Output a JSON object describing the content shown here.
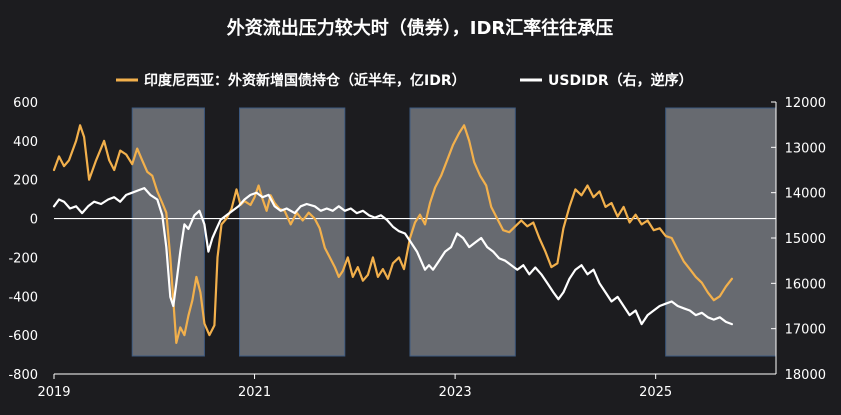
{
  "chart_data": {
    "type": "line",
    "title": "外资流出压力较大时（债券），IDR汇率往往承压",
    "legend": {
      "placement": "top",
      "entries": [
        {
          "name": "印度尼西亚：外资新增国债持仓（近半年，亿IDR）",
          "color": "#f2b04c"
        },
        {
          "name": "USDIDR（右，逆序）",
          "color": "#ffffff"
        }
      ]
    },
    "x_ticks": [
      "2019",
      "2021",
      "2023",
      "2025"
    ],
    "x_range": [
      2019.0,
      2026.2
    ],
    "y_left": {
      "min": -800,
      "max": 600,
      "ticks": [
        "600",
        "400",
        "200",
        "0",
        "-200",
        "-400",
        "-600",
        "-800"
      ]
    },
    "y_right": {
      "min": 12000,
      "max": 18000,
      "inverted": true,
      "ticks": [
        "12000",
        "13000",
        "14000",
        "15000",
        "16000",
        "17000",
        "18000"
      ]
    },
    "shaded_periods": [
      {
        "start": 2019.78,
        "end": 2020.5
      },
      {
        "start": 2020.85,
        "end": 2021.9
      },
      {
        "start": 2022.55,
        "end": 2023.6
      },
      {
        "start": 2025.1,
        "end": 2026.2
      }
    ],
    "series": [
      {
        "name": "印度尼西亚：外资新增国债持仓（近半年，亿IDR）",
        "axis": "left",
        "color": "#f2b04c",
        "points": [
          [
            2019.0,
            250
          ],
          [
            2019.05,
            320
          ],
          [
            2019.1,
            270
          ],
          [
            2019.15,
            300
          ],
          [
            2019.22,
            400
          ],
          [
            2019.26,
            480
          ],
          [
            2019.3,
            420
          ],
          [
            2019.35,
            200
          ],
          [
            2019.42,
            300
          ],
          [
            2019.5,
            400
          ],
          [
            2019.55,
            300
          ],
          [
            2019.6,
            250
          ],
          [
            2019.66,
            350
          ],
          [
            2019.72,
            330
          ],
          [
            2019.78,
            280
          ],
          [
            2019.83,
            360
          ],
          [
            2019.88,
            300
          ],
          [
            2019.93,
            240
          ],
          [
            2019.98,
            220
          ],
          [
            2020.03,
            140
          ],
          [
            2020.08,
            80
          ],
          [
            2020.12,
            30
          ],
          [
            2020.16,
            -200
          ],
          [
            2020.19,
            -420
          ],
          [
            2020.22,
            -640
          ],
          [
            2020.26,
            -560
          ],
          [
            2020.3,
            -600
          ],
          [
            2020.34,
            -500
          ],
          [
            2020.38,
            -420
          ],
          [
            2020.42,
            -300
          ],
          [
            2020.46,
            -380
          ],
          [
            2020.5,
            -540
          ],
          [
            2020.55,
            -600
          ],
          [
            2020.6,
            -550
          ],
          [
            2020.63,
            -200
          ],
          [
            2020.67,
            -30
          ],
          [
            2020.72,
            0
          ],
          [
            2020.77,
            50
          ],
          [
            2020.82,
            150
          ],
          [
            2020.86,
            70
          ],
          [
            2020.9,
            90
          ],
          [
            2020.96,
            70
          ],
          [
            2021.0,
            110
          ],
          [
            2021.04,
            170
          ],
          [
            2021.08,
            100
          ],
          [
            2021.12,
            40
          ],
          [
            2021.16,
            120
          ],
          [
            2021.2,
            80
          ],
          [
            2021.25,
            50
          ],
          [
            2021.3,
            40
          ],
          [
            2021.36,
            -30
          ],
          [
            2021.42,
            30
          ],
          [
            2021.48,
            -10
          ],
          [
            2021.54,
            30
          ],
          [
            2021.6,
            0
          ],
          [
            2021.65,
            -50
          ],
          [
            2021.7,
            -150
          ],
          [
            2021.75,
            -200
          ],
          [
            2021.8,
            -250
          ],
          [
            2021.84,
            -300
          ],
          [
            2021.88,
            -270
          ],
          [
            2021.93,
            -200
          ],
          [
            2021.98,
            -300
          ],
          [
            2022.03,
            -250
          ],
          [
            2022.08,
            -320
          ],
          [
            2022.13,
            -290
          ],
          [
            2022.18,
            -200
          ],
          [
            2022.23,
            -300
          ],
          [
            2022.28,
            -260
          ],
          [
            2022.33,
            -310
          ],
          [
            2022.38,
            -230
          ],
          [
            2022.44,
            -200
          ],
          [
            2022.49,
            -260
          ],
          [
            2022.55,
            -100
          ],
          [
            2022.6,
            -20
          ],
          [
            2022.65,
            20
          ],
          [
            2022.7,
            -30
          ],
          [
            2022.75,
            80
          ],
          [
            2022.8,
            160
          ],
          [
            2022.86,
            220
          ],
          [
            2022.92,
            300
          ],
          [
            2022.98,
            380
          ],
          [
            2023.04,
            440
          ],
          [
            2023.09,
            480
          ],
          [
            2023.14,
            400
          ],
          [
            2023.19,
            290
          ],
          [
            2023.25,
            220
          ],
          [
            2023.31,
            170
          ],
          [
            2023.36,
            60
          ],
          [
            2023.42,
            0
          ],
          [
            2023.48,
            -60
          ],
          [
            2023.54,
            -70
          ],
          [
            2023.6,
            -40
          ],
          [
            2023.66,
            -10
          ],
          [
            2023.72,
            -40
          ],
          [
            2023.78,
            -20
          ],
          [
            2023.84,
            -100
          ],
          [
            2023.9,
            -170
          ],
          [
            2023.96,
            -250
          ],
          [
            2024.02,
            -230
          ],
          [
            2024.08,
            -50
          ],
          [
            2024.14,
            60
          ],
          [
            2024.2,
            150
          ],
          [
            2024.26,
            120
          ],
          [
            2024.32,
            170
          ],
          [
            2024.38,
            110
          ],
          [
            2024.44,
            140
          ],
          [
            2024.5,
            60
          ],
          [
            2024.56,
            80
          ],
          [
            2024.62,
            10
          ],
          [
            2024.68,
            60
          ],
          [
            2024.74,
            -20
          ],
          [
            2024.8,
            20
          ],
          [
            2024.86,
            -30
          ],
          [
            2024.92,
            -10
          ],
          [
            2024.98,
            -60
          ],
          [
            2025.04,
            -50
          ],
          [
            2025.1,
            -90
          ],
          [
            2025.16,
            -100
          ],
          [
            2025.22,
            -160
          ],
          [
            2025.28,
            -220
          ],
          [
            2025.34,
            -260
          ],
          [
            2025.4,
            -300
          ],
          [
            2025.46,
            -330
          ],
          [
            2025.52,
            -380
          ],
          [
            2025.58,
            -420
          ],
          [
            2025.64,
            -400
          ],
          [
            2025.7,
            -350
          ],
          [
            2025.76,
            -310
          ]
        ]
      },
      {
        "name": "USDIDR（右，逆序）",
        "axis": "right",
        "color": "#ffffff",
        "points": [
          [
            2019.0,
            14300
          ],
          [
            2019.05,
            14150
          ],
          [
            2019.1,
            14200
          ],
          [
            2019.16,
            14350
          ],
          [
            2019.22,
            14300
          ],
          [
            2019.28,
            14450
          ],
          [
            2019.34,
            14300
          ],
          [
            2019.4,
            14200
          ],
          [
            2019.47,
            14250
          ],
          [
            2019.54,
            14150
          ],
          [
            2019.6,
            14100
          ],
          [
            2019.66,
            14200
          ],
          [
            2019.72,
            14050
          ],
          [
            2019.78,
            14000
          ],
          [
            2019.84,
            13950
          ],
          [
            2019.9,
            13900
          ],
          [
            2019.96,
            14050
          ],
          [
            2020.03,
            14150
          ],
          [
            2020.08,
            14500
          ],
          [
            2020.12,
            15200
          ],
          [
            2020.16,
            16300
          ],
          [
            2020.19,
            16500
          ],
          [
            2020.22,
            16000
          ],
          [
            2020.26,
            15300
          ],
          [
            2020.3,
            14700
          ],
          [
            2020.34,
            14800
          ],
          [
            2020.4,
            14500
          ],
          [
            2020.45,
            14400
          ],
          [
            2020.5,
            14700
          ],
          [
            2020.54,
            15300
          ],
          [
            2020.58,
            15000
          ],
          [
            2020.62,
            14800
          ],
          [
            2020.66,
            14600
          ],
          [
            2020.72,
            14500
          ],
          [
            2020.78,
            14400
          ],
          [
            2020.84,
            14300
          ],
          [
            2020.9,
            14150
          ],
          [
            2020.96,
            14050
          ],
          [
            2021.02,
            14000
          ],
          [
            2021.08,
            14100
          ],
          [
            2021.14,
            14050
          ],
          [
            2021.2,
            14300
          ],
          [
            2021.26,
            14400
          ],
          [
            2021.32,
            14350
          ],
          [
            2021.4,
            14450
          ],
          [
            2021.46,
            14300
          ],
          [
            2021.52,
            14250
          ],
          [
            2021.6,
            14300
          ],
          [
            2021.66,
            14400
          ],
          [
            2021.72,
            14350
          ],
          [
            2021.78,
            14400
          ],
          [
            2021.84,
            14300
          ],
          [
            2021.9,
            14400
          ],
          [
            2021.96,
            14350
          ],
          [
            2022.02,
            14450
          ],
          [
            2022.08,
            14400
          ],
          [
            2022.14,
            14500
          ],
          [
            2022.2,
            14550
          ],
          [
            2022.26,
            14500
          ],
          [
            2022.32,
            14600
          ],
          [
            2022.38,
            14750
          ],
          [
            2022.44,
            14850
          ],
          [
            2022.5,
            14900
          ],
          [
            2022.56,
            15100
          ],
          [
            2022.62,
            15300
          ],
          [
            2022.66,
            15500
          ],
          [
            2022.7,
            15700
          ],
          [
            2022.74,
            15600
          ],
          [
            2022.78,
            15700
          ],
          [
            2022.84,
            15500
          ],
          [
            2022.9,
            15300
          ],
          [
            2022.96,
            15200
          ],
          [
            2023.02,
            14900
          ],
          [
            2023.08,
            15000
          ],
          [
            2023.14,
            15200
          ],
          [
            2023.2,
            15100
          ],
          [
            2023.26,
            15000
          ],
          [
            2023.32,
            15200
          ],
          [
            2023.38,
            15300
          ],
          [
            2023.44,
            15450
          ],
          [
            2023.5,
            15500
          ],
          [
            2023.56,
            15600
          ],
          [
            2023.62,
            15700
          ],
          [
            2023.68,
            15600
          ],
          [
            2023.74,
            15800
          ],
          [
            2023.8,
            15650
          ],
          [
            2023.86,
            15800
          ],
          [
            2023.92,
            16000
          ],
          [
            2023.98,
            16200
          ],
          [
            2024.03,
            16350
          ],
          [
            2024.08,
            16200
          ],
          [
            2024.14,
            15900
          ],
          [
            2024.2,
            15700
          ],
          [
            2024.26,
            15600
          ],
          [
            2024.32,
            15800
          ],
          [
            2024.38,
            15700
          ],
          [
            2024.44,
            16000
          ],
          [
            2024.5,
            16200
          ],
          [
            2024.56,
            16400
          ],
          [
            2024.62,
            16300
          ],
          [
            2024.68,
            16500
          ],
          [
            2024.74,
            16700
          ],
          [
            2024.8,
            16600
          ],
          [
            2024.86,
            16900
          ],
          [
            2024.92,
            16700
          ],
          [
            2024.98,
            16600
          ],
          [
            2025.04,
            16500
          ],
          [
            2025.1,
            16450
          ],
          [
            2025.16,
            16400
          ],
          [
            2025.22,
            16500
          ],
          [
            2025.28,
            16550
          ],
          [
            2025.34,
            16600
          ],
          [
            2025.4,
            16700
          ],
          [
            2025.46,
            16650
          ],
          [
            2025.52,
            16750
          ],
          [
            2025.58,
            16800
          ],
          [
            2025.64,
            16750
          ],
          [
            2025.7,
            16850
          ],
          [
            2025.76,
            16900
          ]
        ]
      }
    ]
  }
}
